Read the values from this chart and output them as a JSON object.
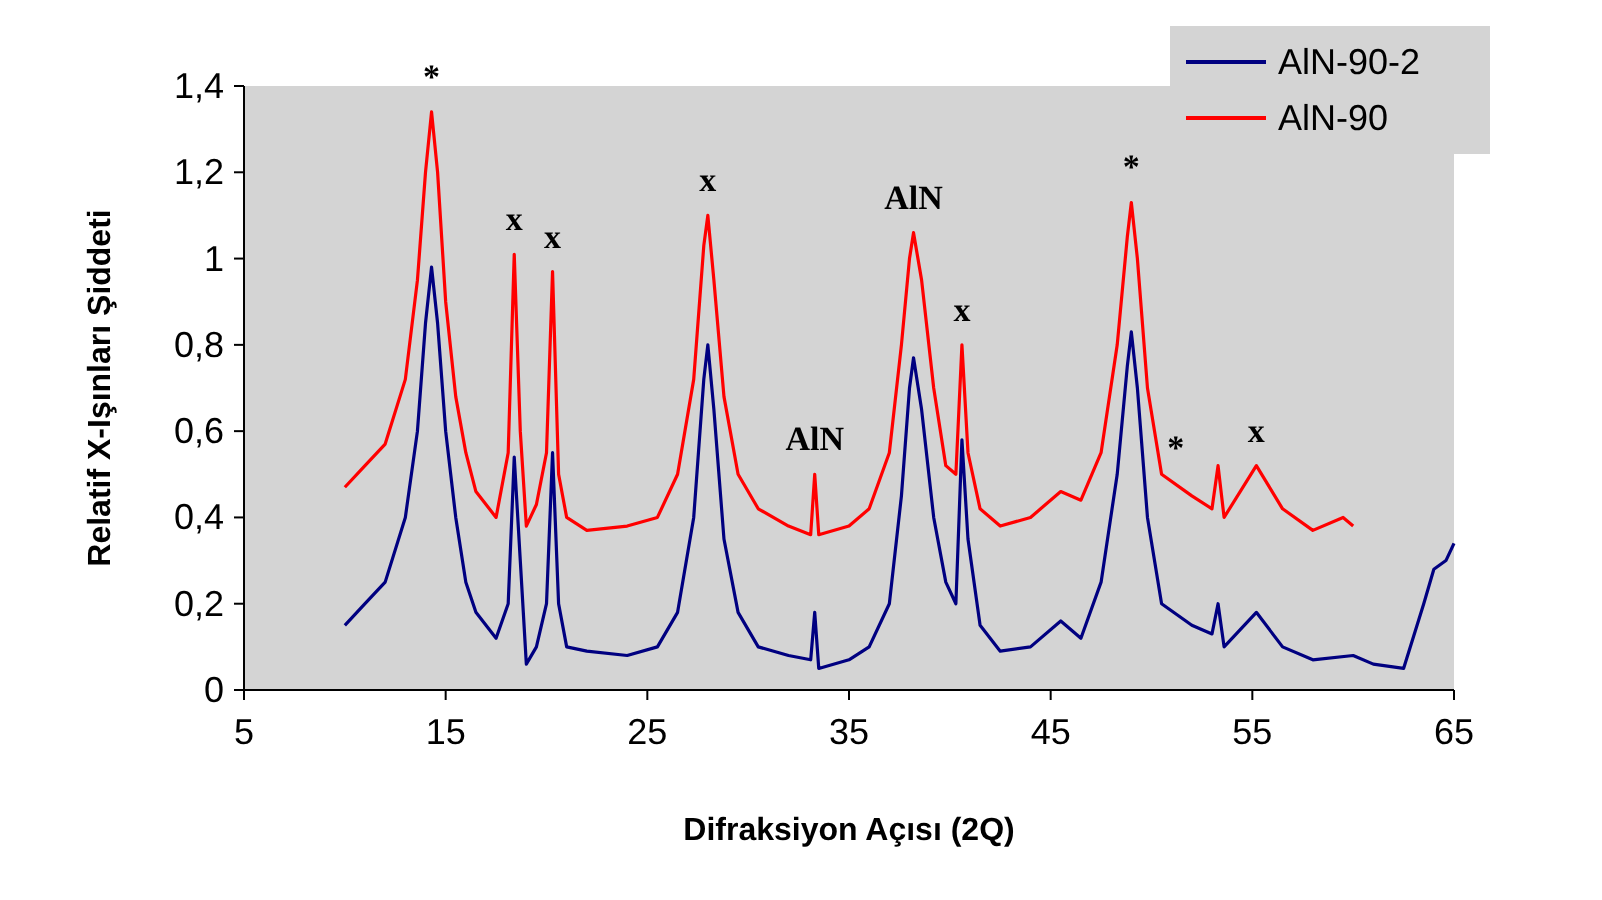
{
  "chart_data": {
    "type": "line",
    "xlabel": "Difraksiyon Açısı (2Q)",
    "ylabel": "Relatif X-Işınları Şiddeti",
    "xlim": [
      5,
      65
    ],
    "xticks": [
      5,
      15,
      25,
      35,
      45,
      55,
      65
    ],
    "ylim": [
      0,
      1.4
    ],
    "yticks": [
      {
        "value": 0,
        "label": "0"
      },
      {
        "value": 0.2,
        "label": "0,2"
      },
      {
        "value": 0.4,
        "label": "0,4"
      },
      {
        "value": 0.6,
        "label": "0,6"
      },
      {
        "value": 0.8,
        "label": "0,8"
      },
      {
        "value": 1,
        "label": "1"
      },
      {
        "value": 1.2,
        "label": "1,2"
      },
      {
        "value": 1.4,
        "label": "1,4"
      }
    ],
    "grid": false,
    "legend": "top right",
    "marker": "none",
    "line_style": "solid",
    "series": [
      {
        "name": "AlN-90-2",
        "color": "#000080",
        "x": [
          10,
          11,
          12,
          13,
          13.6,
          14,
          14.3,
          14.6,
          15,
          15.5,
          16,
          16.5,
          17.5,
          18.1,
          18.4,
          18.7,
          19,
          19.5,
          20,
          20.3,
          20.6,
          21,
          22,
          24,
          25.5,
          26.5,
          27.3,
          27.8,
          28,
          28.3,
          28.8,
          29.5,
          30.5,
          32,
          33.1,
          33.3,
          33.5,
          35,
          36,
          37,
          37.6,
          38,
          38.2,
          38.6,
          39.2,
          39.8,
          40.3,
          40.6,
          40.9,
          41.5,
          42.5,
          44,
          45.5,
          46.5,
          47.5,
          48.3,
          48.8,
          49,
          49.3,
          49.8,
          50.5,
          52,
          53,
          53.3,
          53.6,
          55.2,
          56.5,
          58,
          60,
          61,
          62.5,
          63.5,
          64,
          64.6,
          65
        ],
        "values": [
          0.15,
          0.2,
          0.25,
          0.4,
          0.6,
          0.85,
          0.98,
          0.85,
          0.6,
          0.4,
          0.25,
          0.18,
          0.12,
          0.2,
          0.54,
          0.3,
          0.06,
          0.1,
          0.2,
          0.55,
          0.2,
          0.1,
          0.09,
          0.08,
          0.1,
          0.18,
          0.4,
          0.72,
          0.8,
          0.65,
          0.35,
          0.18,
          0.1,
          0.08,
          0.07,
          0.18,
          0.05,
          0.07,
          0.1,
          0.2,
          0.45,
          0.7,
          0.77,
          0.65,
          0.4,
          0.25,
          0.2,
          0.58,
          0.35,
          0.15,
          0.09,
          0.1,
          0.16,
          0.12,
          0.25,
          0.5,
          0.75,
          0.83,
          0.7,
          0.4,
          0.2,
          0.15,
          0.13,
          0.2,
          0.1,
          0.18,
          0.1,
          0.07,
          0.08,
          0.06,
          0.05,
          0.2,
          0.28,
          0.3,
          0.34
        ]
      },
      {
        "name": "AlN-90",
        "color": "#ff0000",
        "x": [
          10,
          11,
          12,
          13,
          13.6,
          14,
          14.3,
          14.6,
          15,
          15.5,
          16,
          16.5,
          17.5,
          18.1,
          18.4,
          18.7,
          19,
          19.5,
          20,
          20.3,
          20.6,
          21,
          22,
          24,
          25.5,
          26.5,
          27.3,
          27.8,
          28,
          28.3,
          28.8,
          29.5,
          30.5,
          32,
          33.1,
          33.3,
          33.5,
          35,
          36,
          37,
          37.6,
          38,
          38.2,
          38.6,
          39.2,
          39.8,
          40.3,
          40.6,
          40.9,
          41.5,
          42.5,
          44,
          45.5,
          46.5,
          47.5,
          48.3,
          48.8,
          49,
          49.3,
          49.8,
          50.5,
          52,
          53,
          53.3,
          53.6,
          55.2,
          56.5,
          58,
          59.5,
          60
        ],
        "values": [
          0.47,
          0.52,
          0.57,
          0.72,
          0.95,
          1.2,
          1.34,
          1.2,
          0.9,
          0.68,
          0.55,
          0.46,
          0.4,
          0.55,
          1.01,
          0.6,
          0.38,
          0.43,
          0.55,
          0.97,
          0.5,
          0.4,
          0.37,
          0.38,
          0.4,
          0.5,
          0.72,
          1.03,
          1.1,
          0.95,
          0.68,
          0.5,
          0.42,
          0.38,
          0.36,
          0.5,
          0.36,
          0.38,
          0.42,
          0.55,
          0.8,
          1,
          1.06,
          0.95,
          0.7,
          0.52,
          0.5,
          0.8,
          0.55,
          0.42,
          0.38,
          0.4,
          0.46,
          0.44,
          0.55,
          0.8,
          1.05,
          1.13,
          1,
          0.7,
          0.5,
          0.45,
          0.42,
          0.52,
          0.4,
          0.52,
          0.42,
          0.37,
          0.4,
          0.38
        ]
      }
    ],
    "annotations": [
      {
        "text": "*",
        "x": 14.3,
        "y": 1.34
      },
      {
        "text": "x",
        "x": 18.4,
        "y": 1.01
      },
      {
        "text": "x",
        "x": 20.3,
        "y": 0.97
      },
      {
        "text": "x",
        "x": 28,
        "y": 1.1
      },
      {
        "text": "AlN",
        "x": 33.3,
        "y": 0.5
      },
      {
        "text": "AlN",
        "x": 38.2,
        "y": 1.06
      },
      {
        "text": "x",
        "x": 40.6,
        "y": 0.8
      },
      {
        "text": "*",
        "x": 49,
        "y": 1.13
      },
      {
        "text": "*",
        "x": 51.2,
        "y": 0.48
      },
      {
        "text": "x",
        "x": 55.2,
        "y": 0.52
      }
    ]
  }
}
